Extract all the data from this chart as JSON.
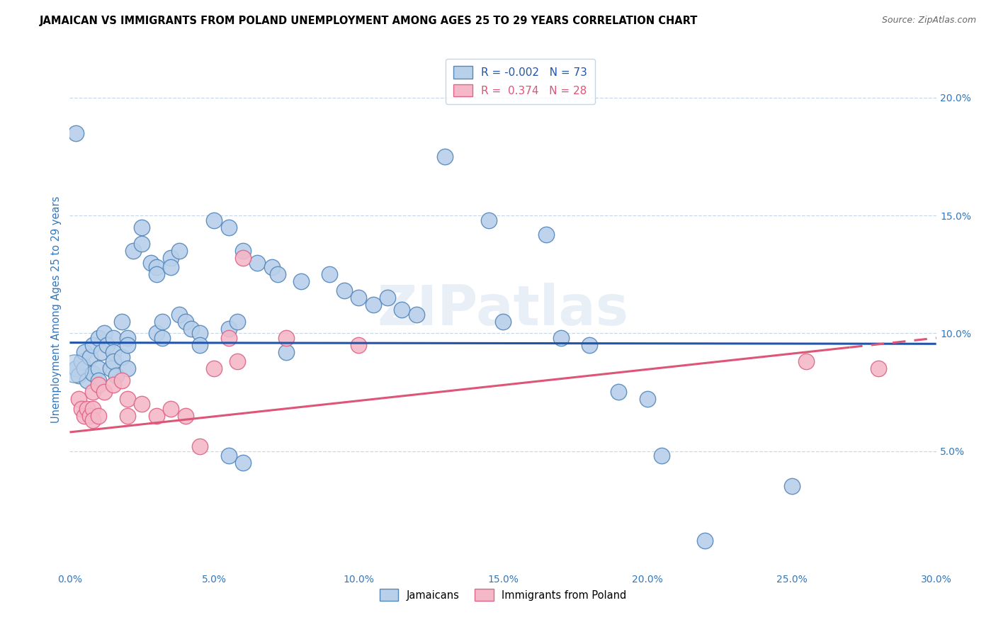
{
  "title": "JAMAICAN VS IMMIGRANTS FROM POLAND UNEMPLOYMENT AMONG AGES 25 TO 29 YEARS CORRELATION CHART",
  "source": "Source: ZipAtlas.com",
  "ylabel": "Unemployment Among Ages 25 to 29 years",
  "ylabel_right_ticks": [
    "20.0%",
    "15.0%",
    "10.0%",
    "5.0%"
  ],
  "ylabel_right_vals": [
    20,
    15,
    10,
    5
  ],
  "xlim": [
    0,
    30
  ],
  "ylim": [
    0,
    22
  ],
  "blue_R": "-0.002",
  "blue_N": "73",
  "pink_R": "0.374",
  "pink_N": "28",
  "blue_color": "#b8d0ea",
  "pink_color": "#f4b8c8",
  "blue_edge_color": "#5588bb",
  "pink_edge_color": "#dd6688",
  "blue_line_color": "#2255aa",
  "pink_line_color": "#dd5577",
  "blue_scatter": [
    [
      0.2,
      8.5
    ],
    [
      0.3,
      8.2
    ],
    [
      0.4,
      8.8
    ],
    [
      0.5,
      9.2
    ],
    [
      0.5,
      8.5
    ],
    [
      0.6,
      8.0
    ],
    [
      0.7,
      9.0
    ],
    [
      0.8,
      8.3
    ],
    [
      0.8,
      9.5
    ],
    [
      1.0,
      9.8
    ],
    [
      1.0,
      8.5
    ],
    [
      1.0,
      8.0
    ],
    [
      1.1,
      9.2
    ],
    [
      1.2,
      10.0
    ],
    [
      1.3,
      9.5
    ],
    [
      1.4,
      8.5
    ],
    [
      1.5,
      9.8
    ],
    [
      1.5,
      9.2
    ],
    [
      1.5,
      8.8
    ],
    [
      1.6,
      8.2
    ],
    [
      1.8,
      10.5
    ],
    [
      1.8,
      9.0
    ],
    [
      2.0,
      9.8
    ],
    [
      2.0,
      9.5
    ],
    [
      2.0,
      8.5
    ],
    [
      2.2,
      13.5
    ],
    [
      2.5,
      14.5
    ],
    [
      2.5,
      13.8
    ],
    [
      2.8,
      13.0
    ],
    [
      3.0,
      12.8
    ],
    [
      3.0,
      12.5
    ],
    [
      3.0,
      10.0
    ],
    [
      3.2,
      10.5
    ],
    [
      3.2,
      9.8
    ],
    [
      3.5,
      13.2
    ],
    [
      3.5,
      12.8
    ],
    [
      3.8,
      13.5
    ],
    [
      3.8,
      10.8
    ],
    [
      4.0,
      10.5
    ],
    [
      4.2,
      10.2
    ],
    [
      4.5,
      10.0
    ],
    [
      4.5,
      9.5
    ],
    [
      5.0,
      14.8
    ],
    [
      5.5,
      14.5
    ],
    [
      5.5,
      10.2
    ],
    [
      5.8,
      10.5
    ],
    [
      6.0,
      13.5
    ],
    [
      6.5,
      13.0
    ],
    [
      7.0,
      12.8
    ],
    [
      7.2,
      12.5
    ],
    [
      7.5,
      9.2
    ],
    [
      8.0,
      12.2
    ],
    [
      9.0,
      12.5
    ],
    [
      9.5,
      11.8
    ],
    [
      10.0,
      11.5
    ],
    [
      10.5,
      11.2
    ],
    [
      11.0,
      11.5
    ],
    [
      11.5,
      11.0
    ],
    [
      12.0,
      10.8
    ],
    [
      13.0,
      17.5
    ],
    [
      14.5,
      14.8
    ],
    [
      15.0,
      10.5
    ],
    [
      16.5,
      14.2
    ],
    [
      17.0,
      9.8
    ],
    [
      18.0,
      9.5
    ],
    [
      19.0,
      7.5
    ],
    [
      20.0,
      7.2
    ],
    [
      22.0,
      1.2
    ],
    [
      25.0,
      3.5
    ],
    [
      0.2,
      18.5
    ],
    [
      5.5,
      4.8
    ],
    [
      6.0,
      4.5
    ],
    [
      20.5,
      4.8
    ]
  ],
  "blue_bubble": [
    0.15,
    8.5,
    800
  ],
  "pink_scatter": [
    [
      0.3,
      7.2
    ],
    [
      0.4,
      6.8
    ],
    [
      0.5,
      6.5
    ],
    [
      0.6,
      6.8
    ],
    [
      0.7,
      6.5
    ],
    [
      0.8,
      7.5
    ],
    [
      0.8,
      6.8
    ],
    [
      0.8,
      6.3
    ],
    [
      1.0,
      7.8
    ],
    [
      1.0,
      6.5
    ],
    [
      1.2,
      7.5
    ],
    [
      1.5,
      7.8
    ],
    [
      1.8,
      8.0
    ],
    [
      2.0,
      7.2
    ],
    [
      2.0,
      6.5
    ],
    [
      2.5,
      7.0
    ],
    [
      3.0,
      6.5
    ],
    [
      3.5,
      6.8
    ],
    [
      4.0,
      6.5
    ],
    [
      4.5,
      5.2
    ],
    [
      5.0,
      8.5
    ],
    [
      5.5,
      9.8
    ],
    [
      5.8,
      8.8
    ],
    [
      6.0,
      13.2
    ],
    [
      7.5,
      9.8
    ],
    [
      10.0,
      9.5
    ],
    [
      25.5,
      8.8
    ],
    [
      28.0,
      8.5
    ]
  ],
  "blue_trend_x": [
    0,
    30
  ],
  "blue_trend_y": [
    9.6,
    9.55
  ],
  "pink_trend_x": [
    0,
    30
  ],
  "pink_trend_y": [
    5.8,
    9.8
  ],
  "pink_solid_end_x": 27,
  "watermark": "ZIPatlas",
  "xticks": [
    0,
    5,
    10,
    15,
    20,
    25,
    30
  ],
  "xtick_labels": [
    "0.0%",
    "5.0%",
    "10.0%",
    "15.0%",
    "20.0%",
    "25.0%",
    "30.0%"
  ],
  "bottom_legend_labels": [
    "Jamaicans",
    "Immigrants from Poland"
  ]
}
